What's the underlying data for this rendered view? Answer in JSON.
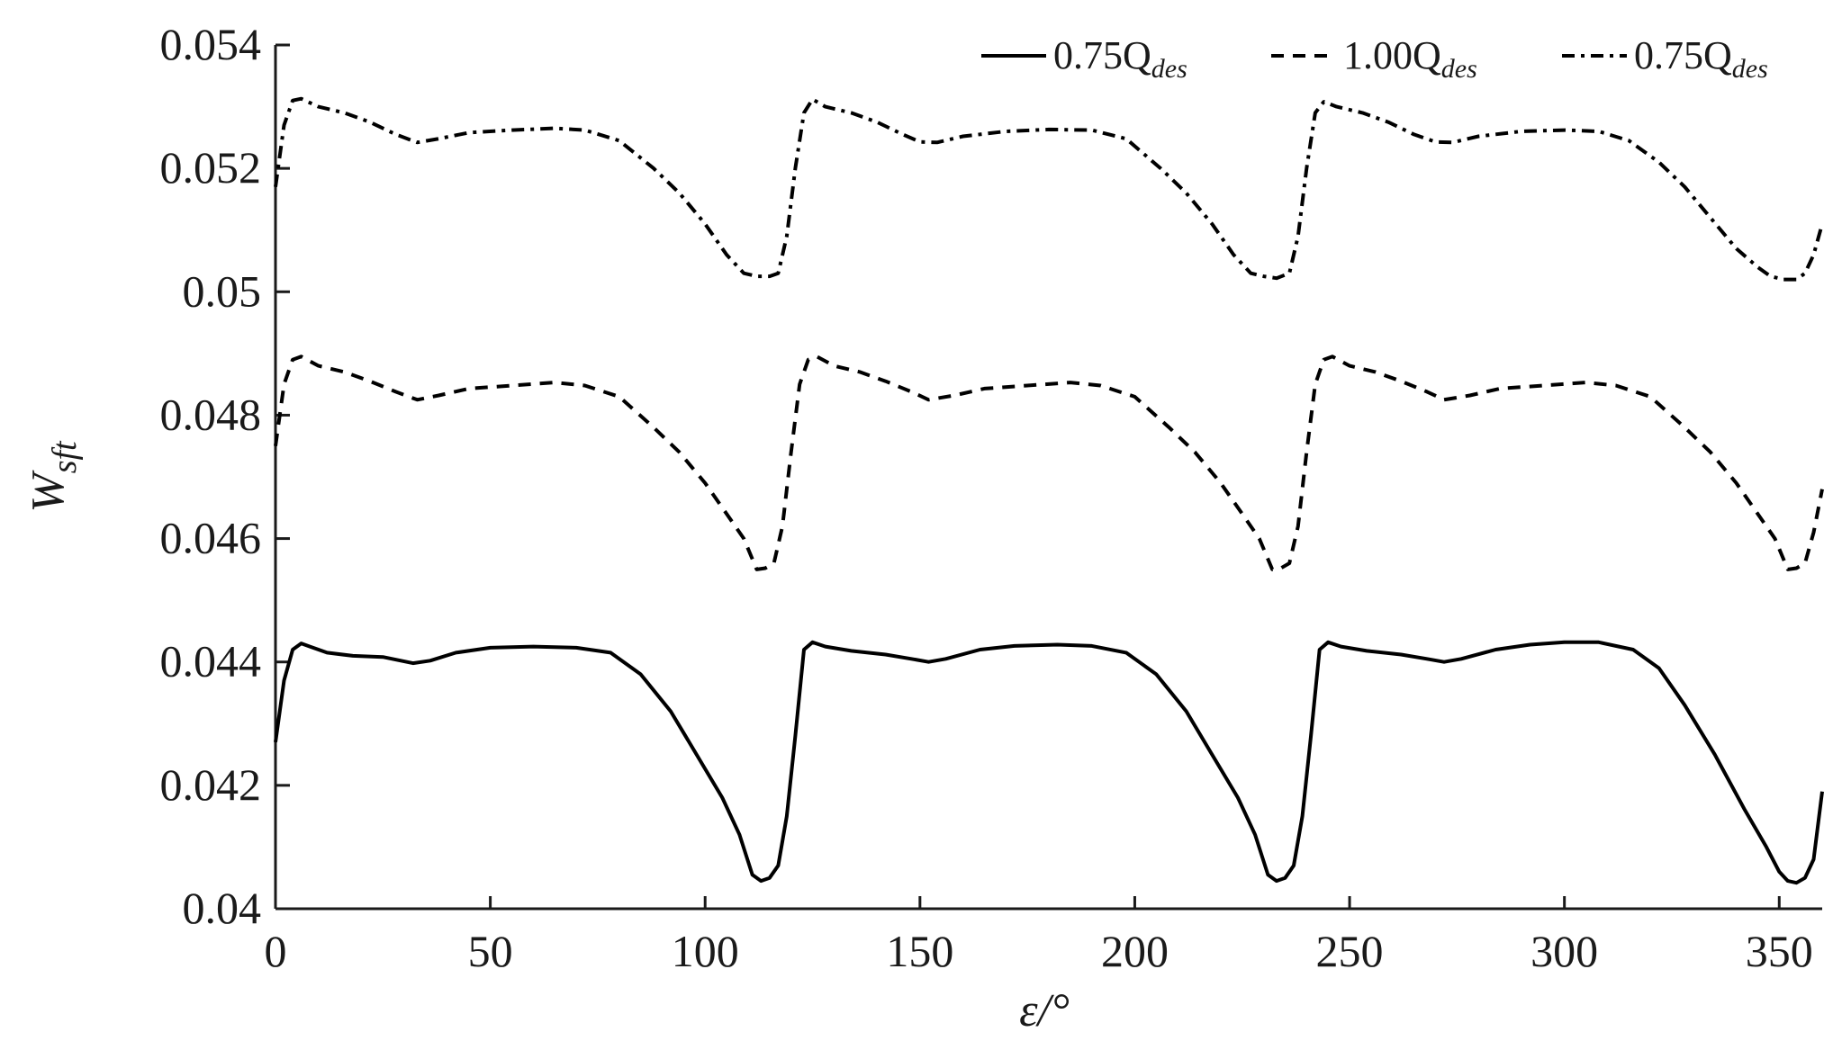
{
  "chart_data": {
    "type": "line",
    "title": "",
    "xlabel": "ε/°",
    "ylabel": "W_sft",
    "ylabel_main": "W",
    "ylabel_sub": "sft",
    "xlim": [
      0,
      360
    ],
    "ylim": [
      0.04,
      0.054
    ],
    "xticks": [
      0,
      50,
      100,
      150,
      200,
      250,
      300,
      350
    ],
    "xtick_labels": [
      "0",
      "50",
      "100",
      "150",
      "200",
      "250",
      "300",
      "350"
    ],
    "yticks": [
      0.04,
      0.042,
      0.044,
      0.046,
      0.048,
      0.05,
      0.052,
      0.054
    ],
    "ytick_labels": [
      "0.04",
      "0.042",
      "0.044",
      "0.046",
      "0.048",
      "0.05",
      "0.052",
      "0.054"
    ],
    "grid": false,
    "legend_position": "top-right",
    "series": [
      {
        "name": "0.75Q_des",
        "label_main": "0.75Q",
        "label_sub": "des",
        "style": "solid",
        "color": "#000000",
        "points": [
          [
            0,
            0.0427
          ],
          [
            2,
            0.0437
          ],
          [
            4,
            0.0442
          ],
          [
            6,
            0.0443
          ],
          [
            8,
            0.04425
          ],
          [
            12,
            0.04415
          ],
          [
            18,
            0.0441
          ],
          [
            25,
            0.04408
          ],
          [
            32,
            0.04398
          ],
          [
            36,
            0.04402
          ],
          [
            42,
            0.04415
          ],
          [
            50,
            0.04423
          ],
          [
            60,
            0.04425
          ],
          [
            70,
            0.04423
          ],
          [
            78,
            0.04415
          ],
          [
            85,
            0.0438
          ],
          [
            92,
            0.0432
          ],
          [
            98,
            0.0425
          ],
          [
            104,
            0.0418
          ],
          [
            108,
            0.0412
          ],
          [
            111,
            0.04055
          ],
          [
            113,
            0.04045
          ],
          [
            115,
            0.0405
          ],
          [
            117,
            0.0407
          ],
          [
            119,
            0.0415
          ],
          [
            121,
            0.0428
          ],
          [
            123,
            0.0442
          ],
          [
            125,
            0.04432
          ],
          [
            128,
            0.04425
          ],
          [
            134,
            0.04418
          ],
          [
            142,
            0.04412
          ],
          [
            148,
            0.04405
          ],
          [
            152,
            0.044
          ],
          [
            156,
            0.04405
          ],
          [
            164,
            0.0442
          ],
          [
            172,
            0.04426
          ],
          [
            182,
            0.04428
          ],
          [
            190,
            0.04426
          ],
          [
            198,
            0.04415
          ],
          [
            205,
            0.0438
          ],
          [
            212,
            0.0432
          ],
          [
            218,
            0.0425
          ],
          [
            224,
            0.0418
          ],
          [
            228,
            0.0412
          ],
          [
            231,
            0.04055
          ],
          [
            233,
            0.04045
          ],
          [
            235,
            0.0405
          ],
          [
            237,
            0.0407
          ],
          [
            239,
            0.0415
          ],
          [
            241,
            0.0428
          ],
          [
            243,
            0.0442
          ],
          [
            245,
            0.04432
          ],
          [
            248,
            0.04425
          ],
          [
            254,
            0.04418
          ],
          [
            262,
            0.04412
          ],
          [
            268,
            0.04405
          ],
          [
            272,
            0.044
          ],
          [
            276,
            0.04405
          ],
          [
            284,
            0.0442
          ],
          [
            292,
            0.04428
          ],
          [
            300,
            0.04432
          ],
          [
            308,
            0.04432
          ],
          [
            316,
            0.0442
          ],
          [
            322,
            0.0439
          ],
          [
            328,
            0.0433
          ],
          [
            335,
            0.0425
          ],
          [
            342,
            0.0416
          ],
          [
            347,
            0.041
          ],
          [
            350,
            0.0406
          ],
          [
            352,
            0.04045
          ],
          [
            354,
            0.04042
          ],
          [
            356,
            0.0405
          ],
          [
            358,
            0.0408
          ],
          [
            360,
            0.0419
          ]
        ]
      },
      {
        "name": "1.00Q_des",
        "label_main": "1.00Q",
        "label_sub": "des",
        "style": "dashed",
        "color": "#000000",
        "points": [
          [
            0,
            0.0475
          ],
          [
            2,
            0.0485
          ],
          [
            4,
            0.0489
          ],
          [
            6,
            0.04895
          ],
          [
            10,
            0.0488
          ],
          [
            16,
            0.0487
          ],
          [
            22,
            0.04855
          ],
          [
            28,
            0.04838
          ],
          [
            33,
            0.04825
          ],
          [
            38,
            0.04832
          ],
          [
            45,
            0.04843
          ],
          [
            55,
            0.04848
          ],
          [
            65,
            0.04853
          ],
          [
            72,
            0.04848
          ],
          [
            80,
            0.0483
          ],
          [
            88,
            0.0478
          ],
          [
            94,
            0.0474
          ],
          [
            100,
            0.0469
          ],
          [
            105,
            0.0464
          ],
          [
            109,
            0.046
          ],
          [
            112,
            0.0455
          ],
          [
            114,
            0.04552
          ],
          [
            116,
            0.0456
          ],
          [
            118,
            0.0462
          ],
          [
            120,
            0.0474
          ],
          [
            122,
            0.0485
          ],
          [
            124,
            0.0489
          ],
          [
            126,
            0.04895
          ],
          [
            130,
            0.0488
          ],
          [
            136,
            0.0487
          ],
          [
            142,
            0.04855
          ],
          [
            148,
            0.04838
          ],
          [
            152,
            0.04825
          ],
          [
            158,
            0.04832
          ],
          [
            165,
            0.04843
          ],
          [
            175,
            0.04848
          ],
          [
            185,
            0.04853
          ],
          [
            192,
            0.04848
          ],
          [
            200,
            0.0483
          ],
          [
            208,
            0.0478
          ],
          [
            214,
            0.0474
          ],
          [
            220,
            0.0469
          ],
          [
            225,
            0.0464
          ],
          [
            229,
            0.046
          ],
          [
            232,
            0.0455
          ],
          [
            234,
            0.04552
          ],
          [
            236,
            0.0456
          ],
          [
            238,
            0.0462
          ],
          [
            240,
            0.0474
          ],
          [
            242,
            0.0485
          ],
          [
            244,
            0.0489
          ],
          [
            246,
            0.04895
          ],
          [
            250,
            0.0488
          ],
          [
            256,
            0.0487
          ],
          [
            262,
            0.04855
          ],
          [
            268,
            0.04838
          ],
          [
            272,
            0.04825
          ],
          [
            278,
            0.04832
          ],
          [
            285,
            0.04843
          ],
          [
            295,
            0.04848
          ],
          [
            305,
            0.04853
          ],
          [
            312,
            0.04848
          ],
          [
            320,
            0.0483
          ],
          [
            328,
            0.0478
          ],
          [
            334,
            0.0474
          ],
          [
            340,
            0.0469
          ],
          [
            345,
            0.0464
          ],
          [
            349,
            0.046
          ],
          [
            352,
            0.0455
          ],
          [
            354,
            0.04552
          ],
          [
            356,
            0.0456
          ],
          [
            358,
            0.0461
          ],
          [
            360,
            0.0468
          ]
        ]
      },
      {
        "name": "0.75Q_des",
        "label_main": "0.75Q",
        "label_sub": "des",
        "style": "dashdot",
        "color": "#000000",
        "points": [
          [
            0,
            0.0517
          ],
          [
            2,
            0.0527
          ],
          [
            4,
            0.0531
          ],
          [
            6,
            0.05313
          ],
          [
            10,
            0.053
          ],
          [
            16,
            0.0529
          ],
          [
            22,
            0.05275
          ],
          [
            28,
            0.05255
          ],
          [
            33,
            0.05242
          ],
          [
            38,
            0.05248
          ],
          [
            45,
            0.05258
          ],
          [
            55,
            0.05262
          ],
          [
            65,
            0.05265
          ],
          [
            72,
            0.05262
          ],
          [
            80,
            0.05245
          ],
          [
            88,
            0.052
          ],
          [
            94,
            0.0516
          ],
          [
            100,
            0.0511
          ],
          [
            105,
            0.0506
          ],
          [
            109,
            0.0503
          ],
          [
            112,
            0.05025
          ],
          [
            115,
            0.05025
          ],
          [
            117,
            0.0503
          ],
          [
            119,
            0.0509
          ],
          [
            121,
            0.052
          ],
          [
            123,
            0.0529
          ],
          [
            125,
            0.05312
          ],
          [
            128,
            0.053
          ],
          [
            134,
            0.0529
          ],
          [
            140,
            0.05275
          ],
          [
            146,
            0.05255
          ],
          [
            150,
            0.05243
          ],
          [
            154,
            0.05242
          ],
          [
            160,
            0.05252
          ],
          [
            170,
            0.0526
          ],
          [
            180,
            0.05263
          ],
          [
            190,
            0.05262
          ],
          [
            198,
            0.05248
          ],
          [
            206,
            0.052
          ],
          [
            212,
            0.0516
          ],
          [
            218,
            0.0511
          ],
          [
            223,
            0.0506
          ],
          [
            227,
            0.0503
          ],
          [
            230,
            0.05025
          ],
          [
            233,
            0.05022
          ],
          [
            236,
            0.0503
          ],
          [
            238,
            0.0509
          ],
          [
            240,
            0.052
          ],
          [
            242,
            0.0529
          ],
          [
            244,
            0.05308
          ],
          [
            247,
            0.053
          ],
          [
            253,
            0.0529
          ],
          [
            259,
            0.05275
          ],
          [
            265,
            0.05255
          ],
          [
            270,
            0.05243
          ],
          [
            274,
            0.05242
          ],
          [
            280,
            0.05252
          ],
          [
            290,
            0.0526
          ],
          [
            300,
            0.05262
          ],
          [
            308,
            0.0526
          ],
          [
            315,
            0.05245
          ],
          [
            322,
            0.0521
          ],
          [
            328,
            0.0517
          ],
          [
            334,
            0.0512
          ],
          [
            340,
            0.0507
          ],
          [
            345,
            0.0504
          ],
          [
            348,
            0.05025
          ],
          [
            351,
            0.0502
          ],
          [
            354,
            0.0502
          ],
          [
            356,
            0.0503
          ],
          [
            358,
            0.0506
          ],
          [
            360,
            0.0511
          ]
        ]
      }
    ]
  }
}
